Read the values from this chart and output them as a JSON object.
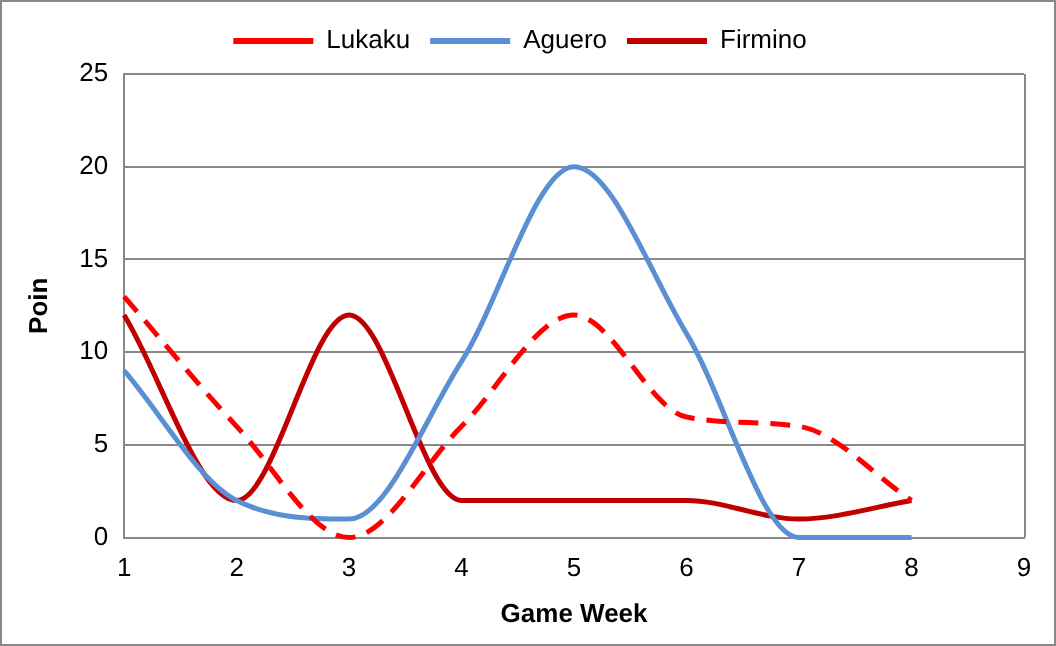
{
  "chart_data": {
    "type": "line",
    "xlabel": "Game Week",
    "ylabel": "Poin",
    "x": [
      1,
      2,
      3,
      4,
      5,
      6,
      7,
      8
    ],
    "series": [
      {
        "name": "Lukaku",
        "color": "#ff0000",
        "line_style": "dashed",
        "values": [
          13,
          6,
          0,
          6,
          12,
          6.5,
          6,
          2
        ]
      },
      {
        "name": "Aguero",
        "color": "#5b8fd4",
        "line_style": "solid",
        "values": [
          9,
          2,
          1,
          9.5,
          20,
          11,
          0,
          0
        ]
      },
      {
        "name": "Firmino",
        "color": "#c00000",
        "line_style": "solid",
        "values": [
          12,
          2,
          12,
          2,
          2,
          2,
          1,
          2
        ]
      }
    ],
    "xlim": [
      1,
      9
    ],
    "xticks": [
      1,
      2,
      3,
      4,
      5,
      6,
      7,
      8,
      9
    ],
    "ylim": [
      0,
      25
    ],
    "yticks": [
      0,
      5,
      10,
      15,
      20,
      25
    ],
    "grid": "y",
    "legend": "top",
    "marker": "none"
  }
}
